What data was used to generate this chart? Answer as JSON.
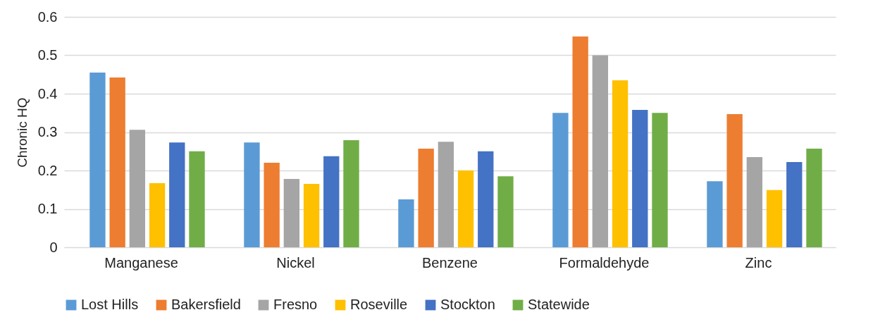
{
  "chart_data": {
    "type": "bar",
    "ylabel": "Chronic HQ",
    "categories": [
      "Manganese",
      "Nickel",
      "Benzene",
      "Formaldehyde",
      "Zinc"
    ],
    "series": [
      {
        "name": "Lost Hills",
        "color": "#5b9bd5",
        "values": [
          0.455,
          0.273,
          0.125,
          0.35,
          0.172
        ]
      },
      {
        "name": "Bakersfield",
        "color": "#ed7d31",
        "values": [
          0.442,
          0.22,
          0.257,
          0.549,
          0.347
        ]
      },
      {
        "name": "Fresno",
        "color": "#a5a5a5",
        "values": [
          0.306,
          0.178,
          0.275,
          0.5,
          0.235
        ]
      },
      {
        "name": "Roseville",
        "color": "#ffc000",
        "values": [
          0.167,
          0.165,
          0.2,
          0.435,
          0.149
        ]
      },
      {
        "name": "Stockton",
        "color": "#4472c4",
        "values": [
          0.273,
          0.237,
          0.25,
          0.358,
          0.222
        ]
      },
      {
        "name": "Statewide",
        "color": "#70ad47",
        "values": [
          0.25,
          0.279,
          0.185,
          0.35,
          0.257
        ]
      }
    ],
    "ylim": [
      0,
      0.6
    ],
    "yticks": [
      0,
      0.1,
      0.2,
      0.3,
      0.4,
      0.5,
      0.6
    ],
    "grid": "y",
    "legend": "bottom"
  }
}
